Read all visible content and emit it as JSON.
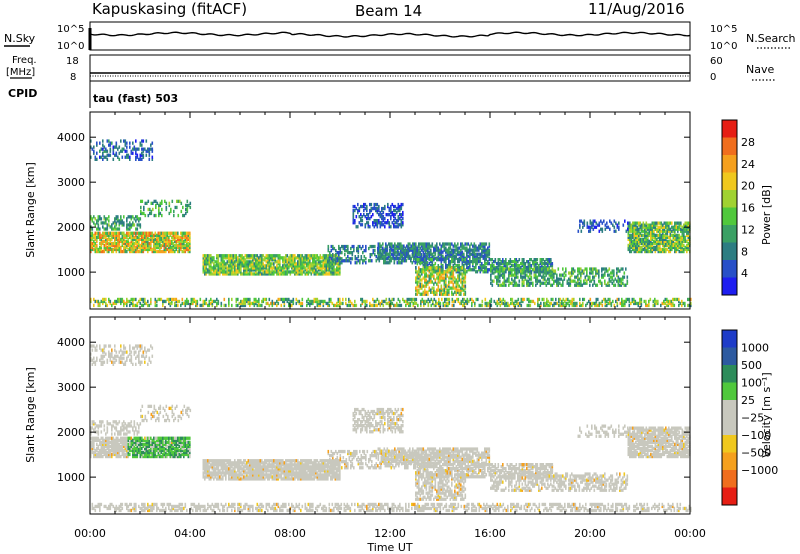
{
  "header": {
    "station": "Kapuskasing (fitACF)",
    "beam": "Beam 14",
    "date": "11/Aug/2016"
  },
  "strip_panels": {
    "nsky_label": "N.Sky",
    "nsearch_label": "N.Search",
    "nsky_ticks": [
      "10^5",
      "10^0"
    ],
    "nsearch_ticks": [
      "10^5",
      "10^0"
    ],
    "freq_label_1": "Freq.",
    "freq_label_2": "[MHz]",
    "freq_ticks": [
      "18",
      "8"
    ],
    "nave_label": "Nave",
    "nave_ticks": [
      "60",
      "0"
    ],
    "cpid_label": "CPID",
    "cpid_value": "tau (fast) 503"
  },
  "chart_data": [
    {
      "type": "heatmap",
      "name": "power",
      "ylabel": "Slant Range [km]",
      "xlabel": "Time UT",
      "x_ticks": [
        "00:00",
        "04:00",
        "08:00",
        "12:00",
        "16:00",
        "20:00",
        "00:00"
      ],
      "xlim_hours": [
        0,
        24
      ],
      "y_ticks": [
        1000,
        2000,
        3000,
        4000
      ],
      "ylim_km": [
        180,
        4560
      ],
      "colorbar_label": "Power [dB]",
      "colorbar_ticks": [
        4,
        8,
        12,
        16,
        20,
        24,
        28
      ],
      "colorbar_colors": [
        "#1e1ef0",
        "#2850c8",
        "#2d7d82",
        "#3aa064",
        "#50c83c",
        "#a0d232",
        "#f0c81e",
        "#f5a01e",
        "#f06e1e",
        "#e61e14"
      ]
    },
    {
      "type": "heatmap",
      "name": "velocity",
      "ylabel": "Slant Range [km]",
      "xlabel": "Time UT",
      "x_ticks": [
        "00:00",
        "04:00",
        "08:00",
        "12:00",
        "16:00",
        "20:00",
        "00:00"
      ],
      "xlim_hours": [
        0,
        24
      ],
      "y_ticks": [
        1000,
        2000,
        3000,
        4000
      ],
      "ylim_km": [
        180,
        4560
      ],
      "colorbar_label": "Velocity [m s⁻¹]",
      "colorbar_ticks": [
        "1000",
        "500",
        "100",
        "25",
        "−25",
        "−100",
        "−500",
        "−1000"
      ],
      "colorbar_colors": [
        "#1e3cc8",
        "#2d5aa0",
        "#2d8c5a",
        "#50c83c",
        "#c8c8be",
        "#c8c8be",
        "#f0c81e",
        "#f5a01e",
        "#f06e1e",
        "#e61e14"
      ]
    }
  ]
}
